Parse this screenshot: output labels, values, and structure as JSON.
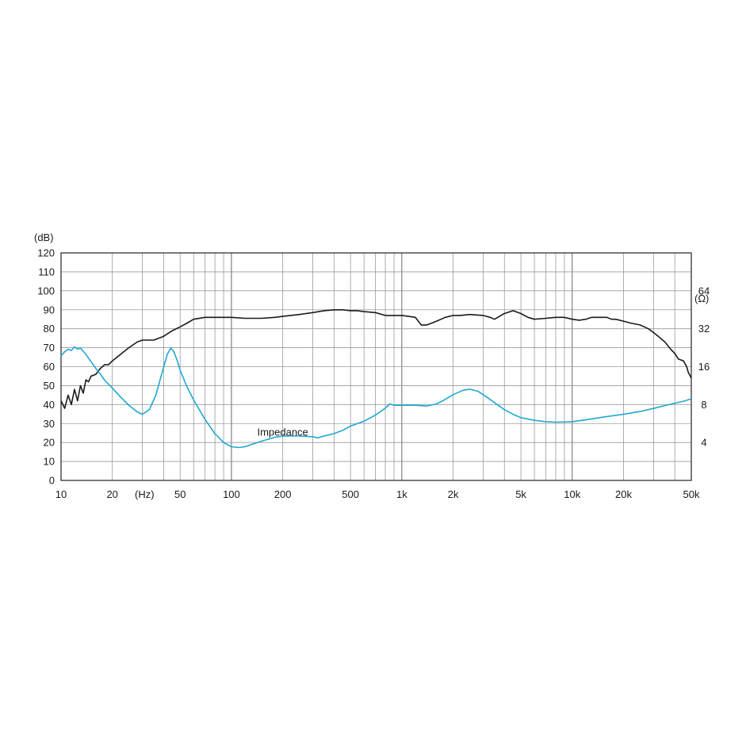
{
  "chart_data": {
    "type": "line",
    "x_scale": "log",
    "xlim": [
      10,
      50000
    ],
    "ylim": [
      0,
      120
    ],
    "y2lim": [
      2,
      128
    ],
    "y2_scale": "log2",
    "grid": true,
    "ylabel": "(dB)",
    "xlabel_unit": "(Hz)",
    "y2label": "(Ω)",
    "x_ticks": [
      {
        "value": 10,
        "label": "10"
      },
      {
        "value": 20,
        "label": "20"
      },
      {
        "value": 50,
        "label": "50"
      },
      {
        "value": 100,
        "label": "100"
      },
      {
        "value": 200,
        "label": "200"
      },
      {
        "value": 500,
        "label": "500"
      },
      {
        "value": 1000,
        "label": "1k"
      },
      {
        "value": 2000,
        "label": "2k"
      },
      {
        "value": 5000,
        "label": "5k"
      },
      {
        "value": 10000,
        "label": "10k"
      },
      {
        "value": 20000,
        "label": "20k"
      },
      {
        "value": 50000,
        "label": "50k"
      }
    ],
    "y_ticks": [
      {
        "value": 0,
        "label": "0"
      },
      {
        "value": 10,
        "label": "10"
      },
      {
        "value": 20,
        "label": "20"
      },
      {
        "value": 30,
        "label": "30"
      },
      {
        "value": 40,
        "label": "40"
      },
      {
        "value": 50,
        "label": "50"
      },
      {
        "value": 60,
        "label": "60"
      },
      {
        "value": 70,
        "label": "70"
      },
      {
        "value": 80,
        "label": "80"
      },
      {
        "value": 90,
        "label": "90"
      },
      {
        "value": 100,
        "label": "100"
      },
      {
        "value": 110,
        "label": "110"
      },
      {
        "value": 120,
        "label": "120"
      }
    ],
    "y2_ticks": [
      {
        "value": 4,
        "label": "4"
      },
      {
        "value": 8,
        "label": "8"
      },
      {
        "value": 16,
        "label": "16"
      },
      {
        "value": 32,
        "label": "32"
      },
      {
        "value": 64,
        "label": "64"
      }
    ],
    "series": [
      {
        "name": "",
        "axis": "left",
        "color": "#1a1a1a",
        "points": [
          [
            10,
            42
          ],
          [
            10.5,
            38
          ],
          [
            11,
            45
          ],
          [
            11.5,
            40
          ],
          [
            12,
            48
          ],
          [
            12.5,
            42
          ],
          [
            13,
            50
          ],
          [
            13.5,
            46
          ],
          [
            14,
            53
          ],
          [
            14.5,
            52
          ],
          [
            15,
            55
          ],
          [
            16,
            56
          ],
          [
            17,
            59
          ],
          [
            18,
            61
          ],
          [
            19,
            61
          ],
          [
            20,
            63
          ],
          [
            22,
            66
          ],
          [
            25,
            70
          ],
          [
            28,
            73
          ],
          [
            30,
            74
          ],
          [
            35,
            74
          ],
          [
            40,
            76
          ],
          [
            45,
            79
          ],
          [
            50,
            81
          ],
          [
            55,
            83
          ],
          [
            60,
            85
          ],
          [
            70,
            86
          ],
          [
            80,
            86
          ],
          [
            90,
            86
          ],
          [
            100,
            86
          ],
          [
            120,
            85.5
          ],
          [
            150,
            85.5
          ],
          [
            180,
            86
          ],
          [
            200,
            86.5
          ],
          [
            250,
            87.5
          ],
          [
            300,
            88.5
          ],
          [
            350,
            89.5
          ],
          [
            400,
            90
          ],
          [
            450,
            90
          ],
          [
            500,
            89.5
          ],
          [
            550,
            89.5
          ],
          [
            600,
            89
          ],
          [
            700,
            88.5
          ],
          [
            800,
            87
          ],
          [
            900,
            87
          ],
          [
            1000,
            87
          ],
          [
            1100,
            86.5
          ],
          [
            1200,
            86
          ],
          [
            1300,
            82
          ],
          [
            1400,
            82
          ],
          [
            1500,
            83
          ],
          [
            1600,
            84
          ],
          [
            1800,
            86
          ],
          [
            2000,
            87
          ],
          [
            2200,
            87
          ],
          [
            2500,
            87.5
          ],
          [
            3000,
            87
          ],
          [
            3300,
            86
          ],
          [
            3500,
            85
          ],
          [
            4000,
            88
          ],
          [
            4500,
            89.5
          ],
          [
            5000,
            88
          ],
          [
            5500,
            86
          ],
          [
            6000,
            85
          ],
          [
            7000,
            85.5
          ],
          [
            8000,
            86
          ],
          [
            9000,
            86
          ],
          [
            10000,
            85
          ],
          [
            11000,
            84.5
          ],
          [
            12000,
            85
          ],
          [
            13000,
            86
          ],
          [
            15000,
            86
          ],
          [
            16000,
            86
          ],
          [
            17000,
            85
          ],
          [
            18000,
            85
          ],
          [
            20000,
            84
          ],
          [
            22000,
            83
          ],
          [
            25000,
            82
          ],
          [
            28000,
            80
          ],
          [
            30000,
            78
          ],
          [
            32000,
            76
          ],
          [
            35000,
            73
          ],
          [
            38000,
            69
          ],
          [
            40000,
            67
          ],
          [
            42000,
            64
          ],
          [
            45000,
            63
          ],
          [
            47000,
            60
          ],
          [
            48000,
            57
          ],
          [
            50000,
            54
          ]
        ]
      },
      {
        "name": "Impedance",
        "axis": "right",
        "color": "#1fa8d2",
        "points": [
          [
            10,
            19.5
          ],
          [
            10.5,
            21
          ],
          [
            11,
            22
          ],
          [
            11.5,
            21.5
          ],
          [
            12,
            23
          ],
          [
            12.5,
            22
          ],
          [
            13,
            22.5
          ],
          [
            14,
            20
          ],
          [
            15,
            17.5
          ],
          [
            16,
            15.5
          ],
          [
            17,
            14
          ],
          [
            18,
            12.5
          ],
          [
            20,
            10.8
          ],
          [
            22,
            9.4
          ],
          [
            25,
            7.9
          ],
          [
            28,
            7
          ],
          [
            30,
            6.7
          ],
          [
            33,
            7.3
          ],
          [
            36,
            9.5
          ],
          [
            39,
            14
          ],
          [
            42,
            20
          ],
          [
            44,
            22.5
          ],
          [
            46,
            21
          ],
          [
            48,
            18
          ],
          [
            50,
            15
          ],
          [
            55,
            11
          ],
          [
            60,
            8.7
          ],
          [
            70,
            6.1
          ],
          [
            80,
            4.7
          ],
          [
            90,
            4
          ],
          [
            100,
            3.7
          ],
          [
            110,
            3.65
          ],
          [
            120,
            3.7
          ],
          [
            150,
            4.1
          ],
          [
            180,
            4.4
          ],
          [
            200,
            4.5
          ],
          [
            250,
            4.5
          ],
          [
            300,
            4.45
          ],
          [
            320,
            4.35
          ],
          [
            350,
            4.5
          ],
          [
            400,
            4.7
          ],
          [
            450,
            5
          ],
          [
            500,
            5.4
          ],
          [
            600,
            5.9
          ],
          [
            700,
            6.6
          ],
          [
            800,
            7.5
          ],
          [
            850,
            8.1
          ],
          [
            900,
            7.9
          ],
          [
            1000,
            7.9
          ],
          [
            1200,
            7.9
          ],
          [
            1400,
            7.8
          ],
          [
            1600,
            8.1
          ],
          [
            1800,
            8.8
          ],
          [
            2000,
            9.6
          ],
          [
            2300,
            10.4
          ],
          [
            2500,
            10.6
          ],
          [
            2800,
            10.2
          ],
          [
            3000,
            9.6
          ],
          [
            3500,
            8.3
          ],
          [
            4000,
            7.3
          ],
          [
            4500,
            6.7
          ],
          [
            5000,
            6.3
          ],
          [
            6000,
            6
          ],
          [
            7000,
            5.85
          ],
          [
            8000,
            5.8
          ],
          [
            9000,
            5.82
          ],
          [
            10000,
            5.85
          ],
          [
            12000,
            6.05
          ],
          [
            15000,
            6.35
          ],
          [
            20000,
            6.7
          ],
          [
            25000,
            7.05
          ],
          [
            30000,
            7.45
          ],
          [
            35000,
            7.85
          ],
          [
            40000,
            8.2
          ],
          [
            45000,
            8.5
          ],
          [
            50000,
            8.9
          ]
        ]
      }
    ],
    "annotations": [
      {
        "text": "Impedance",
        "x": 200,
        "y": 22
      }
    ]
  }
}
